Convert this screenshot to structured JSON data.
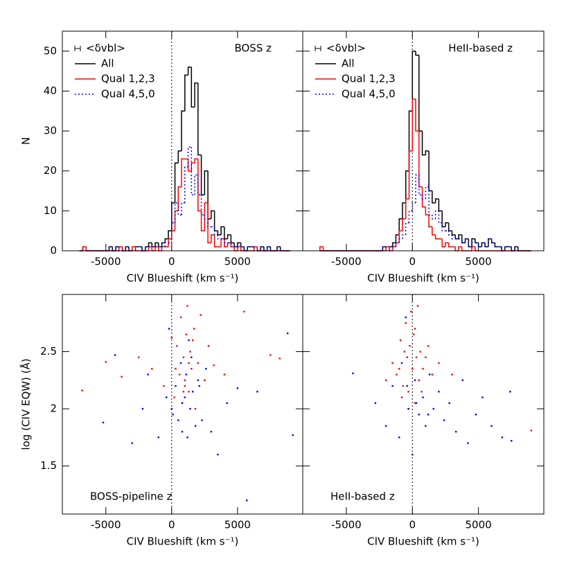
{
  "chart_data": [
    {
      "type": "histogram",
      "annotation": "BOSS z",
      "annotation_corner": "upper right",
      "xlabel": "CIV Blueshift (km s⁻¹)",
      "ylabel": "N",
      "legend_title": "<δvbl>",
      "legend_corner": "upper left",
      "reference_line": 0,
      "xlim": [
        -8300,
        9950
      ],
      "ylim": [
        0,
        55
      ],
      "xticks": [
        -5000,
        0,
        5000
      ],
      "yticks": [
        0,
        10,
        20,
        30,
        40,
        50
      ],
      "ytick_labels": true,
      "bins": [
        -7000,
        -6750,
        -6500,
        -6250,
        -6000,
        -5750,
        -5500,
        -5250,
        -5000,
        -4750,
        -4500,
        -4250,
        -4000,
        -3750,
        -3500,
        -3250,
        -3000,
        -2750,
        -2500,
        -2250,
        -2000,
        -1750,
        -1500,
        -1250,
        -1000,
        -750,
        -500,
        -250,
        0,
        250,
        500,
        750,
        1000,
        1250,
        1500,
        1750,
        2000,
        2250,
        2500,
        2750,
        3000,
        3250,
        3500,
        3750,
        4000,
        4250,
        4500,
        4750,
        5000,
        5250,
        5500,
        5750,
        6000,
        6250,
        6500,
        6750,
        7000,
        7250,
        7500,
        7750,
        8000,
        8250,
        8500,
        8750,
        9000
      ],
      "series": [
        {
          "name": "All",
          "color": "#000000",
          "dash": "solid",
          "values": [
            0,
            1,
            0,
            0,
            0,
            0,
            0,
            0,
            0,
            1,
            0,
            1,
            1,
            0,
            1,
            0,
            1,
            1,
            1,
            0,
            1,
            2,
            1,
            2,
            1,
            2,
            3,
            5,
            12,
            22,
            25,
            35,
            44,
            46,
            36,
            42,
            24,
            14,
            20,
            8,
            10,
            5,
            4,
            6,
            3,
            4,
            2,
            1,
            2,
            1,
            0,
            1,
            1,
            1,
            0,
            1,
            0,
            1,
            0,
            0,
            1,
            0,
            0,
            0
          ]
        },
        {
          "name": "Qual 1,2,3",
          "color": "#ff0000",
          "dash": "solid",
          "values": [
            0,
            1,
            0,
            0,
            0,
            0,
            0,
            0,
            0,
            0,
            0,
            0,
            1,
            0,
            0,
            0,
            1,
            0,
            0,
            0,
            0,
            1,
            0,
            1,
            0,
            1,
            1,
            3,
            5,
            10,
            16,
            23,
            23,
            20,
            22,
            23,
            10,
            5,
            12,
            2,
            4,
            1,
            1,
            3,
            1,
            2,
            1,
            0,
            1,
            0,
            0,
            0,
            0,
            1,
            0,
            0,
            0,
            0,
            0,
            0,
            0,
            0,
            0,
            0
          ]
        },
        {
          "name": "Qual 4,5,0",
          "color": "#0000ff",
          "dash": "dotted",
          "values": [
            0,
            0,
            0,
            0,
            0,
            0,
            0,
            0,
            0,
            1,
            0,
            1,
            0,
            0,
            1,
            0,
            0,
            1,
            1,
            0,
            1,
            1,
            1,
            1,
            1,
            1,
            2,
            2,
            7,
            12,
            9,
            12,
            21,
            26,
            14,
            19,
            14,
            9,
            8,
            6,
            6,
            4,
            3,
            3,
            2,
            2,
            1,
            1,
            1,
            1,
            0,
            1,
            1,
            0,
            0,
            1,
            0,
            1,
            0,
            0,
            1,
            0,
            0,
            0
          ]
        }
      ]
    },
    {
      "type": "histogram",
      "annotation": "HeII-based z",
      "annotation_corner": "upper right",
      "xlabel": "CIV Blueshift (km s⁻¹)",
      "legend_title": "<δvbl>",
      "legend_corner": "upper left",
      "reference_line": 0,
      "xlim": [
        -8300,
        9950
      ],
      "ylim": [
        0,
        55
      ],
      "xticks": [
        -5000,
        0,
        5000
      ],
      "yticks": [
        0,
        10,
        20,
        30,
        40,
        50
      ],
      "ytick_labels": false,
      "bins": [
        -7000,
        -6750,
        -6500,
        -6250,
        -6000,
        -5750,
        -5500,
        -5250,
        -5000,
        -4750,
        -4500,
        -4250,
        -4000,
        -3750,
        -3500,
        -3250,
        -3000,
        -2750,
        -2500,
        -2250,
        -2000,
        -1750,
        -1500,
        -1250,
        -1000,
        -750,
        -500,
        -250,
        0,
        250,
        500,
        750,
        1000,
        1250,
        1500,
        1750,
        2000,
        2250,
        2500,
        2750,
        3000,
        3250,
        3500,
        3750,
        4000,
        4250,
        4500,
        4750,
        5000,
        5250,
        5500,
        5750,
        6000,
        6250,
        6500,
        6750,
        7000,
        7250,
        7500,
        7750,
        8000,
        8250,
        8500,
        8750,
        9000
      ],
      "series": [
        {
          "name": "All",
          "color": "#000000",
          "dash": "solid",
          "values": [
            0,
            0,
            0,
            0,
            0,
            0,
            0,
            0,
            0,
            0,
            0,
            0,
            0,
            0,
            0,
            0,
            0,
            0,
            0,
            1,
            1,
            1,
            2,
            4,
            8,
            12,
            20,
            35,
            50,
            49,
            30,
            24,
            25,
            15,
            12,
            13,
            10,
            6,
            7,
            5,
            4,
            3,
            4,
            2,
            3,
            1,
            3,
            2,
            1,
            2,
            1,
            3,
            2,
            1,
            1,
            0,
            1,
            1,
            0,
            1,
            0,
            0,
            0,
            0
          ]
        },
        {
          "name": "Qual 1,2,3",
          "color": "#ff0000",
          "dash": "solid",
          "values": [
            1,
            0,
            0,
            0,
            0,
            0,
            0,
            0,
            0,
            0,
            0,
            0,
            0,
            0,
            0,
            0,
            0,
            0,
            0,
            0,
            1,
            0,
            1,
            2,
            5,
            8,
            13,
            25,
            38,
            30,
            16,
            11,
            9,
            6,
            4,
            3,
            3,
            1,
            2,
            1,
            1,
            0,
            1,
            0,
            0,
            0,
            1,
            0,
            0,
            0,
            0,
            0,
            0,
            0,
            0,
            0,
            0,
            0,
            0,
            0,
            0,
            0,
            0,
            0
          ]
        },
        {
          "name": "Qual 4,5,0",
          "color": "#0000ff",
          "dash": "dotted",
          "values": [
            0,
            0,
            0,
            0,
            0,
            0,
            0,
            0,
            0,
            0,
            0,
            0,
            0,
            0,
            0,
            0,
            0,
            0,
            0,
            1,
            0,
            1,
            1,
            2,
            3,
            4,
            7,
            10,
            12,
            19,
            14,
            13,
            16,
            9,
            8,
            10,
            7,
            5,
            5,
            4,
            3,
            3,
            3,
            2,
            3,
            1,
            2,
            2,
            1,
            2,
            1,
            3,
            2,
            1,
            1,
            0,
            1,
            1,
            0,
            1,
            0,
            0,
            0,
            0
          ]
        }
      ]
    },
    {
      "type": "scatter",
      "annotation": "BOSS-pipeline z",
      "annotation_corner": "lower left",
      "xlabel": "CIV Blueshift (km s⁻¹)",
      "ylabel": "log (CIV EQW) (Å)",
      "reference_line": 0,
      "xlim": [
        -8300,
        9950
      ],
      "ylim": [
        1.08,
        3.0
      ],
      "xticks": [
        -5000,
        0,
        5000
      ],
      "yticks": [
        1.5,
        2,
        2.5
      ],
      "ytick_labels": true,
      "series": [
        {
          "color": "#ff0000",
          "x": [
            -6800,
            -5000,
            -3800,
            -2500,
            -1500,
            -600,
            0,
            200,
            400,
            600,
            700,
            800,
            900,
            1000,
            1100,
            1200,
            1300,
            1400,
            1500,
            1700,
            1800,
            2000,
            2200,
            2500,
            2800,
            3200,
            4000,
            5500,
            7500,
            8200,
            300,
            1000,
            1600,
            900,
            1300
          ],
          "y": [
            2.16,
            2.41,
            2.28,
            2.45,
            2.35,
            2.2,
            2.62,
            2.1,
            2.55,
            2.3,
            2.8,
            2.05,
            2.45,
            2.25,
            2.65,
            2.9,
            2.15,
            2.5,
            2.35,
            2.7,
            2.0,
            2.4,
            2.82,
            2.25,
            2.55,
            2.38,
            2.3,
            2.85,
            2.47,
            2.44,
            2.35,
            2.2,
            2.6,
            2.15,
            2.4
          ]
        },
        {
          "color": "#0000ff",
          "x": [
            8800,
            -5200,
            -4300,
            -3000,
            -2200,
            -1800,
            -1000,
            -400,
            0,
            100,
            300,
            500,
            700,
            800,
            1000,
            1100,
            1200,
            1400,
            1500,
            1600,
            1800,
            2000,
            2300,
            2600,
            3000,
            3500,
            4200,
            5000,
            5700,
            6500,
            9200,
            1300,
            800,
            2100,
            -200
          ],
          "y": [
            2.66,
            1.88,
            2.47,
            1.7,
            2.0,
            2.3,
            1.75,
            2.1,
            2.0,
            1.95,
            2.2,
            1.9,
            2.4,
            1.8,
            2.1,
            2.3,
            1.75,
            2.0,
            2.45,
            2.15,
            1.85,
            2.25,
            1.9,
            2.35,
            1.8,
            1.6,
            2.05,
            2.18,
            1.2,
            2.15,
            1.77,
            2.6,
            2.05,
            2.2,
            2.7
          ]
        }
      ]
    },
    {
      "type": "scatter",
      "annotation": "HeII-based z",
      "annotation_corner": "lower left",
      "xlabel": "CIV Blueshift (km s⁻¹)",
      "reference_line": 0,
      "xlim": [
        -8300,
        9950
      ],
      "ylim": [
        1.08,
        3.0
      ],
      "xticks": [
        -5000,
        0,
        5000
      ],
      "yticks": [
        1.5,
        2,
        2.5
      ],
      "ytick_labels": false,
      "series": [
        {
          "color": "#ff0000",
          "x": [
            -1500,
            -1200,
            -900,
            -700,
            -500,
            -400,
            -300,
            -200,
            -100,
            0,
            100,
            200,
            300,
            400,
            500,
            600,
            800,
            1000,
            1200,
            1500,
            -800,
            -600,
            -300,
            200,
            700,
            2000,
            3000,
            9000,
            -2000,
            -1000
          ],
          "y": [
            2.4,
            2.3,
            2.6,
            2.2,
            2.75,
            2.45,
            2.15,
            2.55,
            2.85,
            2.35,
            2.65,
            2.05,
            2.45,
            2.9,
            2.25,
            2.5,
            2.35,
            2.45,
            2.55,
            2.3,
            2.1,
            2.5,
            2.0,
            2.7,
            2.15,
            2.4,
            2.3,
            1.81,
            2.25,
            2.35
          ]
        },
        {
          "color": "#0000ff",
          "x": [
            -4500,
            -2800,
            -2000,
            -1500,
            -1000,
            -800,
            -500,
            -300,
            0,
            200,
            500,
            800,
            1000,
            1300,
            1600,
            2000,
            2400,
            2800,
            3300,
            3800,
            4200,
            4800,
            5300,
            6000,
            6800,
            7400,
            7500,
            -400,
            300,
            1200
          ],
          "y": [
            2.31,
            2.05,
            1.85,
            2.2,
            1.75,
            2.4,
            2.8,
            2.0,
            1.6,
            2.25,
            1.95,
            2.1,
            1.85,
            2.3,
            2.0,
            2.15,
            1.9,
            2.05,
            1.8,
            2.25,
            1.7,
            1.95,
            2.1,
            1.85,
            1.75,
            2.15,
            1.72,
            2.2,
            2.05,
            1.95
          ]
        }
      ]
    }
  ]
}
